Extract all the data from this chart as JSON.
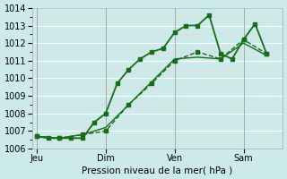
{
  "title": "",
  "xlabel": "Pression niveau de la mer( hPa )",
  "ylabel": "",
  "bg_color": "#cceaea",
  "grid_color_major": "#ffffff",
  "grid_color_minor": "#f0d0d0",
  "line_color": "#1a6b1a",
  "ylim": [
    1006,
    1014
  ],
  "yticks": [
    1006,
    1007,
    1008,
    1009,
    1010,
    1011,
    1012,
    1013,
    1014
  ],
  "xtick_labels": [
    "Jeu",
    "Dim",
    "Ven",
    "Sam"
  ],
  "xtick_positions": [
    0,
    3,
    6,
    9
  ],
  "lines": [
    {
      "x": [
        0.0,
        0.5,
        1.0,
        1.5,
        2.0,
        2.5,
        3.0,
        3.5,
        4.0,
        4.5,
        5.0,
        5.5,
        6.0,
        6.5,
        7.0,
        7.5,
        8.0,
        8.5,
        9.0,
        9.5,
        10.0
      ],
      "y": [
        1006.7,
        1006.6,
        1006.6,
        1006.6,
        1006.6,
        1007.5,
        1008.0,
        1009.7,
        1010.5,
        1011.1,
        1011.5,
        1011.7,
        1012.6,
        1013.0,
        1013.0,
        1013.6,
        1011.4,
        1011.1,
        1012.2,
        1013.1,
        1011.4
      ],
      "style": "solid",
      "marker": "s",
      "markersize": 3,
      "linewidth": 1.3,
      "zorder": 3
    },
    {
      "x": [
        0.0,
        1.0,
        2.0,
        3.0,
        4.0,
        5.0,
        6.0,
        7.0,
        8.0,
        9.0,
        10.0
      ],
      "y": [
        1006.7,
        1006.6,
        1006.8,
        1007.0,
        1008.5,
        1009.7,
        1011.0,
        1011.5,
        1011.1,
        1012.2,
        1011.4
      ],
      "style": "dashed",
      "marker": "s",
      "markersize": 3,
      "linewidth": 1.0,
      "zorder": 2
    },
    {
      "x": [
        0.0,
        1.0,
        2.0,
        3.0,
        4.0,
        5.0,
        6.0,
        7.0,
        8.0,
        9.0,
        10.0
      ],
      "y": [
        1006.7,
        1006.6,
        1006.8,
        1007.2,
        1008.5,
        1009.8,
        1011.1,
        1011.2,
        1011.1,
        1012.0,
        1011.3
      ],
      "style": "solid",
      "marker": null,
      "markersize": 0,
      "linewidth": 1.0,
      "zorder": 1
    }
  ]
}
